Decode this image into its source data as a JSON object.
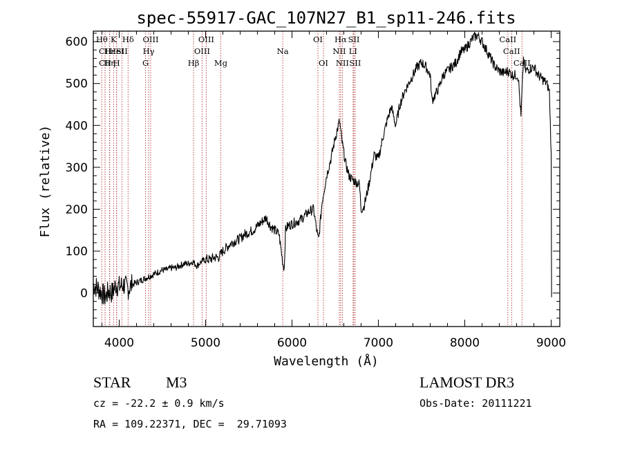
{
  "chart_data": {
    "type": "line",
    "title": "spec-55917-GAC_107N27_B1_sp11-246.fits",
    "xlabel": "Wavelength (Å)",
    "ylabel": "Flux (relative)",
    "xlim": [
      3700,
      9100
    ],
    "ylim": [
      -80,
      625
    ],
    "xticks": [
      4000,
      5000,
      6000,
      7000,
      8000,
      9000
    ],
    "yticks": [
      0,
      100,
      200,
      300,
      400,
      500,
      600
    ],
    "series": [
      {
        "name": "flux",
        "x": [
          3700,
          3760,
          3800,
          3840,
          3880,
          3920,
          3960,
          4000,
          4050,
          4100,
          4150,
          4200,
          4250,
          4300,
          4350,
          4400,
          4450,
          4500,
          4550,
          4600,
          4650,
          4700,
          4750,
          4800,
          4850,
          4900,
          4950,
          5000,
          5050,
          5100,
          5150,
          5200,
          5250,
          5300,
          5350,
          5400,
          5450,
          5500,
          5550,
          5600,
          5650,
          5700,
          5750,
          5800,
          5850,
          5895,
          5910,
          5925,
          5950,
          6000,
          6050,
          6100,
          6150,
          6200,
          6250,
          6300,
          6310,
          6350,
          6400,
          6450,
          6500,
          6550,
          6580,
          6620,
          6660,
          6700,
          6740,
          6780,
          6800,
          6830,
          6860,
          6900,
          6950,
          7000,
          7050,
          7100,
          7150,
          7200,
          7250,
          7300,
          7350,
          7400,
          7450,
          7500,
          7550,
          7600,
          7620,
          7650,
          7700,
          7750,
          7800,
          7850,
          7900,
          7950,
          8000,
          8050,
          8100,
          8150,
          8200,
          8250,
          8300,
          8350,
          8400,
          8450,
          8500,
          8550,
          8600,
          8620,
          8650,
          8680,
          8700,
          8750,
          8800,
          8850,
          8900,
          8950,
          8980,
          9000,
          9005
        ],
        "values": [
          20,
          10,
          0,
          -10,
          5,
          0,
          20,
          15,
          20,
          10,
          20,
          25,
          30,
          35,
          40,
          45,
          50,
          55,
          55,
          60,
          60,
          65,
          70,
          70,
          75,
          65,
          75,
          80,
          80,
          85,
          85,
          100,
          110,
          120,
          125,
          130,
          140,
          145,
          150,
          160,
          170,
          180,
          160,
          150,
          140,
          70,
          60,
          150,
          160,
          165,
          170,
          175,
          185,
          195,
          200,
          130,
          130,
          220,
          280,
          320,
          370,
          410,
          360,
          310,
          280,
          270,
          265,
          260,
          200,
          205,
          230,
          270,
          330,
          320,
          370,
          410,
          445,
          400,
          450,
          480,
          500,
          520,
          540,
          550,
          540,
          520,
          460,
          470,
          490,
          520,
          530,
          540,
          550,
          575,
          580,
          595,
          610,
          615,
          600,
          580,
          560,
          540,
          530,
          525,
          530,
          520,
          520,
          515,
          420,
          560,
          530,
          535,
          540,
          520,
          510,
          500,
          480,
          330,
          -10
        ]
      }
    ],
    "line_markers": [
      {
        "name": "Hθ",
        "wave": 3798,
        "row": 0
      },
      {
        "name": "CII",
        "wave": 3836,
        "row": 1
      },
      {
        "name": "CII",
        "wave": 3837,
        "row": 2
      },
      {
        "name": "K",
        "wave": 3934,
        "row": 0
      },
      {
        "name": "Hε",
        "wave": 3890,
        "row": 1
      },
      {
        "name": "Hη",
        "wave": 3889,
        "row": 2
      },
      {
        "name": "H",
        "wave": 3969,
        "row": 2
      },
      {
        "name": "HeI",
        "wave": 3970,
        "row": 1
      },
      {
        "name": "SII",
        "wave": 4030,
        "row": 1
      },
      {
        "name": "Hδ",
        "wave": 4102,
        "row": 0
      },
      {
        "name": "OIII",
        "wave": 4364,
        "row": 0
      },
      {
        "name": "Hγ",
        "wave": 4341,
        "row": 1
      },
      {
        "name": "G",
        "wave": 4305,
        "row": 2
      },
      {
        "name": "Hβ",
        "wave": 4861,
        "row": 2
      },
      {
        "name": "OIII",
        "wave": 4959,
        "row": 1
      },
      {
        "name": "OIII",
        "wave": 5007,
        "row": 0
      },
      {
        "name": "Mg",
        "wave": 5175,
        "row": 2
      },
      {
        "name": "Na",
        "wave": 5893,
        "row": 1
      },
      {
        "name": "OI",
        "wave": 6300,
        "row": 0
      },
      {
        "name": "OI",
        "wave": 6364,
        "row": 2
      },
      {
        "name": "NII",
        "wave": 6548,
        "row": 1
      },
      {
        "name": "Hα",
        "wave": 6563,
        "row": 0
      },
      {
        "name": "NII",
        "wave": 6583,
        "row": 2
      },
      {
        "name": "LI",
        "wave": 6707,
        "row": 1
      },
      {
        "name": "SII",
        "wave": 6716,
        "row": 0
      },
      {
        "name": "SII",
        "wave": 6731,
        "row": 2
      },
      {
        "name": "CaII",
        "wave": 8498,
        "row": 0
      },
      {
        "name": "CaII",
        "wave": 8542,
        "row": 1
      },
      {
        "name": "CaII",
        "wave": 8662,
        "row": 2
      }
    ],
    "colors": {
      "spectrum": "#000000",
      "markers": "#b03030",
      "axes": "#000000"
    }
  },
  "info": {
    "class": "STAR",
    "subclass": "M3",
    "survey": "LAMOST DR3",
    "redshift": "cz = -22.2 ± 0.9 km/s",
    "obs_date": "Obs-Date: 20111221",
    "coords": "RA = 109.22371, DEC =  29.71093"
  }
}
